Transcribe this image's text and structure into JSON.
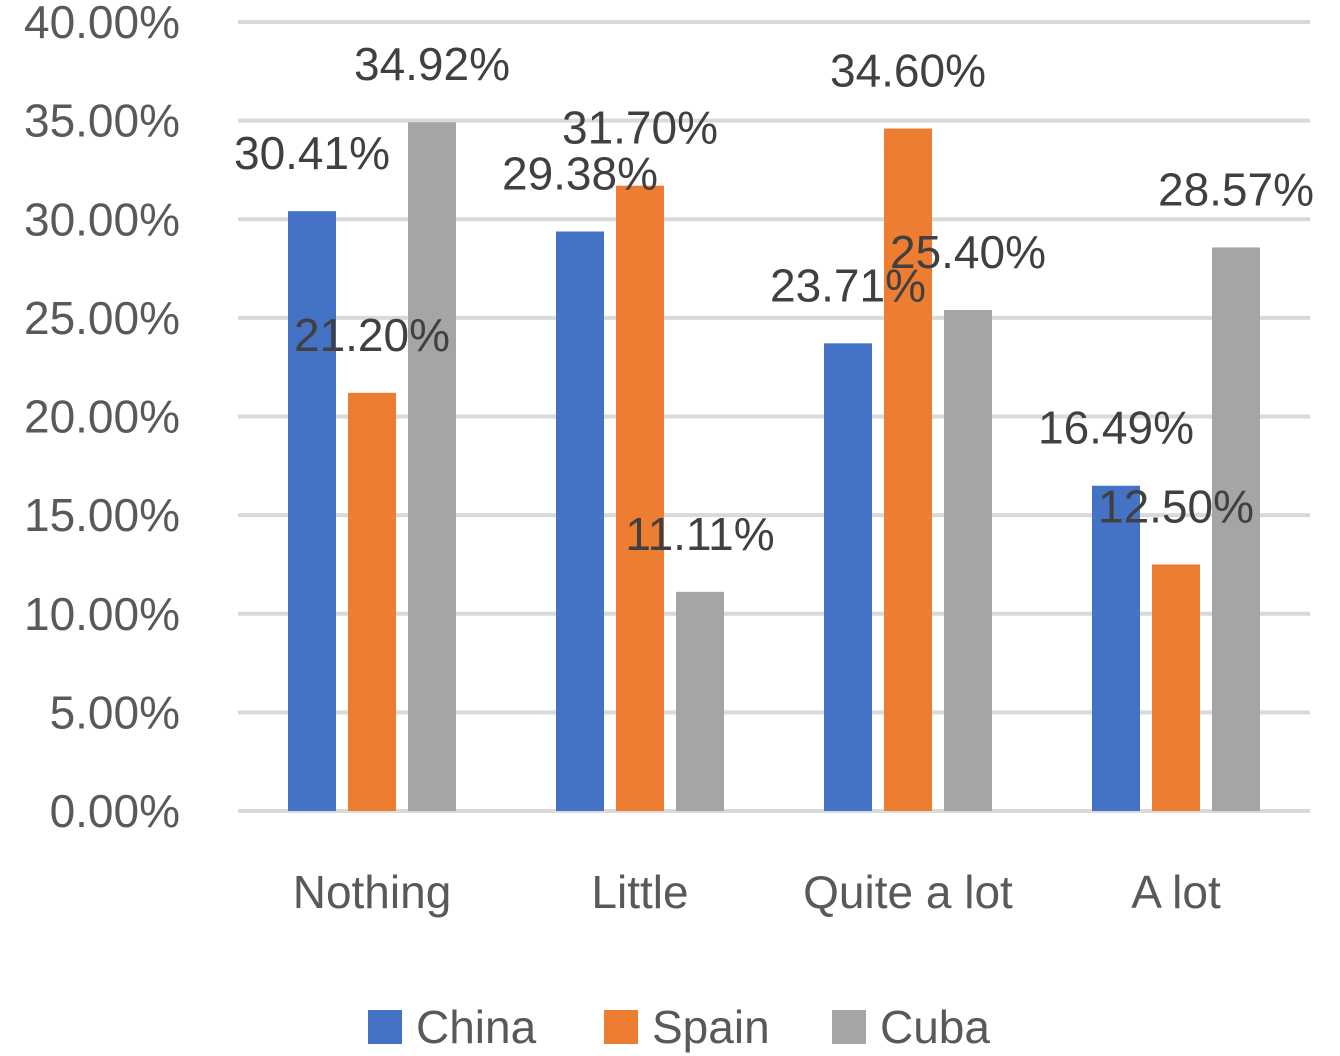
{
  "chart_data": {
    "type": "bar",
    "categories": [
      "Nothing",
      "Little",
      "Quite a lot",
      "A lot"
    ],
    "series": [
      {
        "name": "China",
        "color": "#4472c4",
        "values": [
          30.41,
          29.38,
          23.71,
          16.49
        ],
        "labels": [
          "30.41%",
          "29.38%",
          "23.71%",
          "16.49%"
        ]
      },
      {
        "name": "Spain",
        "color": "#ed7d31",
        "values": [
          21.2,
          31.7,
          34.6,
          12.5
        ],
        "labels": [
          "21.20%",
          "31.70%",
          "34.60%",
          "12.50%"
        ]
      },
      {
        "name": "Cuba",
        "color": "#a5a5a5",
        "values": [
          34.92,
          11.11,
          25.4,
          28.57
        ],
        "labels": [
          "34.92%",
          "11.11%",
          "25.40%",
          "28.57%"
        ]
      }
    ],
    "yticks": [
      {
        "value": 0,
        "label": "0.00%"
      },
      {
        "value": 5,
        "label": "5.00%"
      },
      {
        "value": 10,
        "label": "10.00%"
      },
      {
        "value": 15,
        "label": "15.00%"
      },
      {
        "value": 20,
        "label": "20.00%"
      },
      {
        "value": 25,
        "label": "25.00%"
      },
      {
        "value": 30,
        "label": "30.00%"
      },
      {
        "value": 35,
        "label": "35.00%"
      },
      {
        "value": 40,
        "label": "40.00%"
      }
    ],
    "ylim": [
      0,
      40
    ],
    "grid": true,
    "legend_position": "bottom",
    "title": "",
    "xlabel": "",
    "ylabel": ""
  }
}
